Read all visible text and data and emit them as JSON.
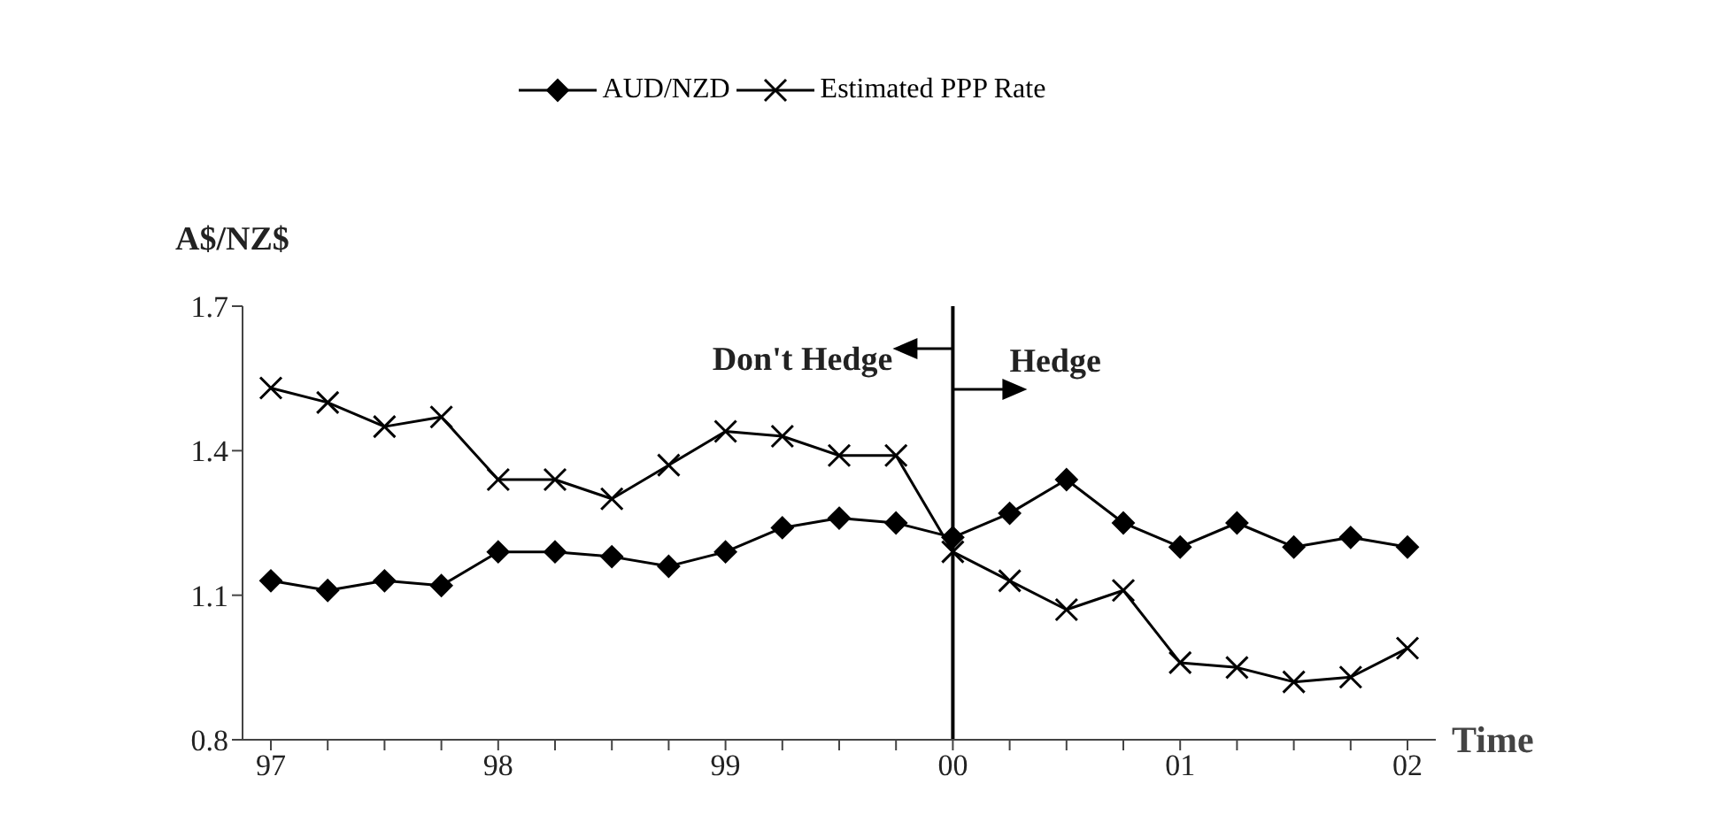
{
  "chart_data": {
    "type": "line",
    "xlabel": "Time",
    "ylabel": "A$/NZ$",
    "categories": [
      "97",
      null,
      null,
      null,
      "98",
      null,
      null,
      null,
      "99",
      null,
      null,
      null,
      "00",
      null,
      null,
      null,
      "01",
      null,
      null,
      null,
      "02"
    ],
    "series": [
      {
        "name": "AUD/NZD",
        "color": "#000000",
        "marker": "diamond",
        "values": [
          1.13,
          1.11,
          1.13,
          1.12,
          1.19,
          1.19,
          1.18,
          1.16,
          1.19,
          1.24,
          1.26,
          1.25,
          1.22,
          1.27,
          1.34,
          1.25,
          1.2,
          1.25,
          1.2,
          1.22,
          1.2
        ]
      },
      {
        "name": "Estimated PPP Rate",
        "color": "#000000",
        "marker": "cross",
        "values": [
          1.53,
          1.5,
          1.45,
          1.47,
          1.34,
          1.34,
          1.3,
          1.37,
          1.44,
          1.43,
          1.39,
          1.39,
          1.19,
          1.13,
          1.07,
          1.11,
          0.96,
          0.95,
          0.92,
          0.93,
          0.99
        ]
      }
    ],
    "ylim": [
      0.8,
      1.7
    ],
    "yticks": [
      0.8,
      1.1,
      1.4,
      1.7
    ],
    "ref_lines": [
      {
        "axis": "x",
        "value": "00",
        "color": "#000000"
      }
    ],
    "annotations": [
      "Don't Hedge",
      "Hedge"
    ],
    "legend": "top",
    "grid": false,
    "line_style": "solid"
  }
}
